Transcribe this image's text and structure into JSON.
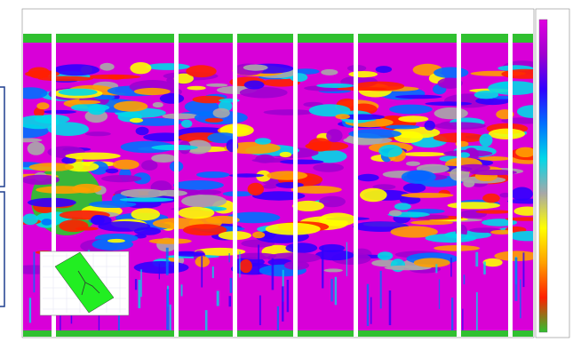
{
  "section": {
    "palette": [
      "#e000e0",
      "#a000d0",
      "#3000ff",
      "#0070ff",
      "#00d8e8",
      "#a8a8a8",
      "#ffff00",
      "#ffa000",
      "#ff2000",
      "#30c030"
    ]
  }
}
